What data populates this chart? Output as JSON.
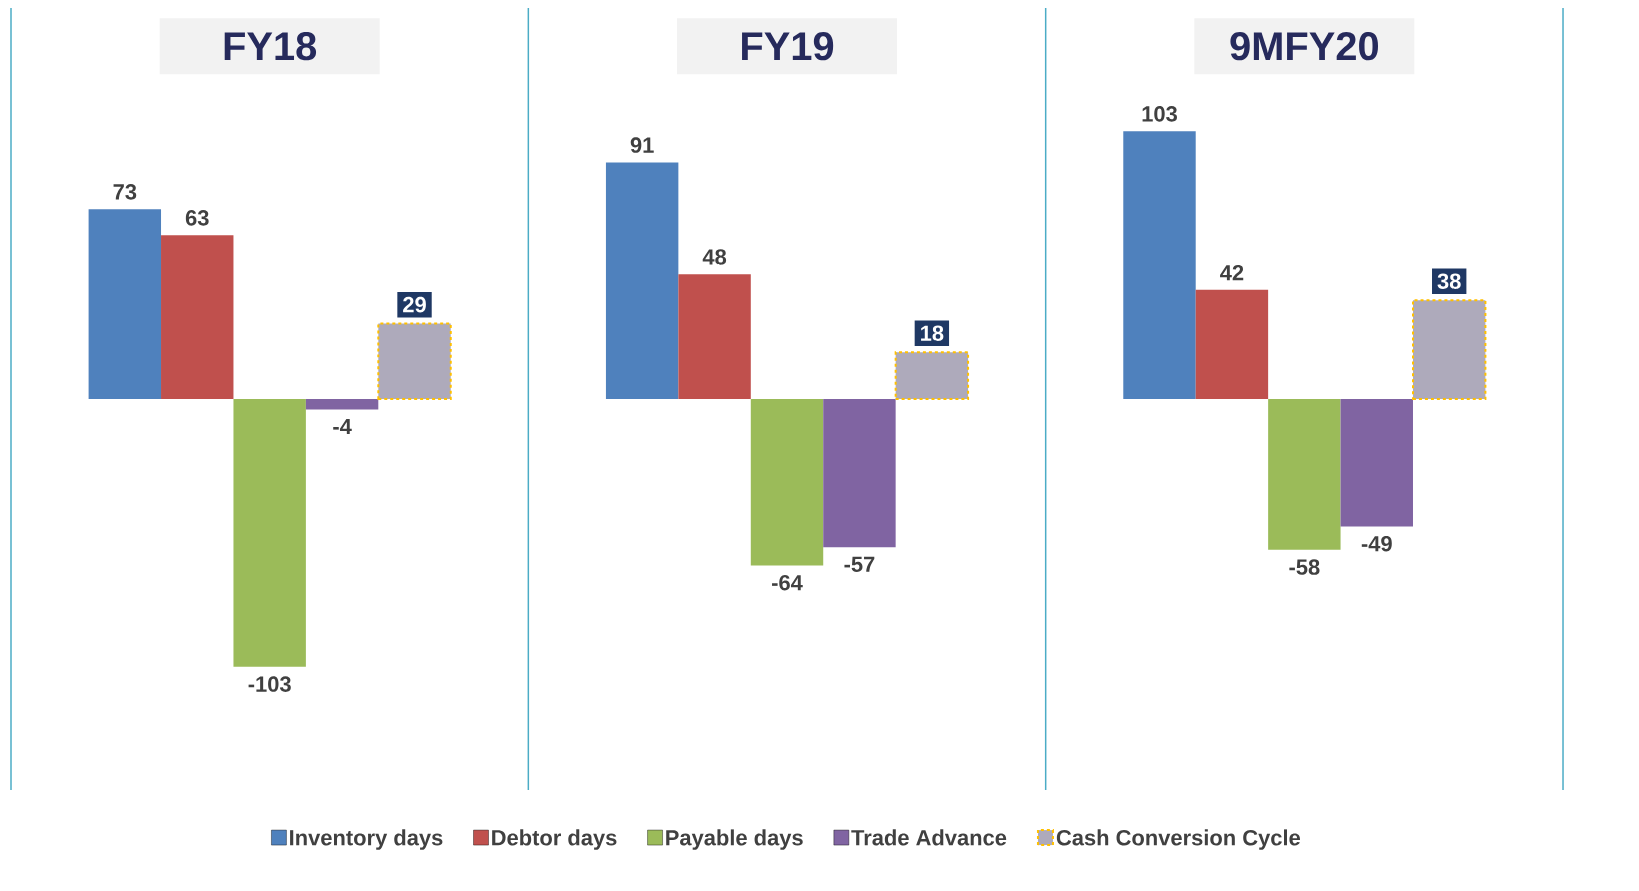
{
  "chart_data": {
    "type": "bar",
    "categories": [
      "FY18",
      "FY19",
      "9MFY20"
    ],
    "series": [
      {
        "name": "Inventory days",
        "color": "#4f81bd",
        "values": [
          73,
          91,
          103
        ]
      },
      {
        "name": "Debtor days",
        "color": "#c0504d",
        "values": [
          63,
          48,
          42
        ]
      },
      {
        "name": "Payable days",
        "color": "#9bbb59",
        "values": [
          -103,
          -64,
          -58
        ]
      },
      {
        "name": "Trade Advance",
        "color": "#8064a2",
        "values": [
          -4,
          -57,
          -49
        ]
      },
      {
        "name": "Cash Conversion Cycle",
        "color": "#aeaabb",
        "values": [
          29,
          18,
          38
        ]
      }
    ],
    "data_labels": true,
    "legend": "bottom"
  }
}
